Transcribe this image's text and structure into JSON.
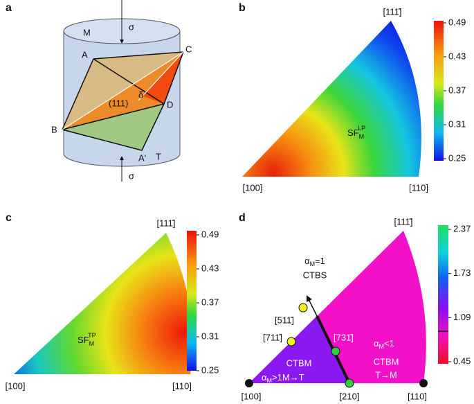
{
  "panel_a": {
    "label": "a",
    "M": "M",
    "T": "T",
    "sigma_top": "σ",
    "sigma_bottom": "σ",
    "A": "A",
    "C": "C",
    "D": "D",
    "B": "B",
    "A_prime": "A'",
    "plane": "(111)",
    "angle": "δ"
  },
  "panel_b": {
    "label": "b",
    "top": "[111̄]",
    "left": "[100]",
    "right": "[110]",
    "sf": "SF",
    "sf_sub": "M",
    "sf_sup": "LP",
    "colorbar_ticks": [
      0.49,
      0.43,
      0.37,
      0.31,
      0.25
    ]
  },
  "panel_c": {
    "label": "c",
    "top": "[111̄]",
    "left": "[100]",
    "right": "[110]",
    "sf": "SF",
    "sf_sub": "M",
    "sf_sup": "TP",
    "colorbar_ticks": [
      0.49,
      0.43,
      0.37,
      0.31,
      0.25
    ]
  },
  "panel_d": {
    "label": "d",
    "top": "[111̄]",
    "left": "[100]",
    "middle": "[210]",
    "right": "[110]",
    "ctbs_alpha": "α",
    "ctbs_sub": "M",
    "ctbs_eq": "=1",
    "ctbs": "CTBS",
    "p511": "[511̄]",
    "p711": "[711̄]",
    "p731": "[731̄]",
    "right_alpha": "α",
    "right_sub": "M",
    "right_cond": "<1",
    "right_ctbm": "CTBM",
    "right_trans": "T→M",
    "left_ctbm": "CTBM",
    "left_alpha": "α",
    "left_sub": "M",
    "left_cond": ">1M→T",
    "colorbar_ticks": [
      2.37,
      1.73,
      1.09,
      0.45
    ]
  }
}
